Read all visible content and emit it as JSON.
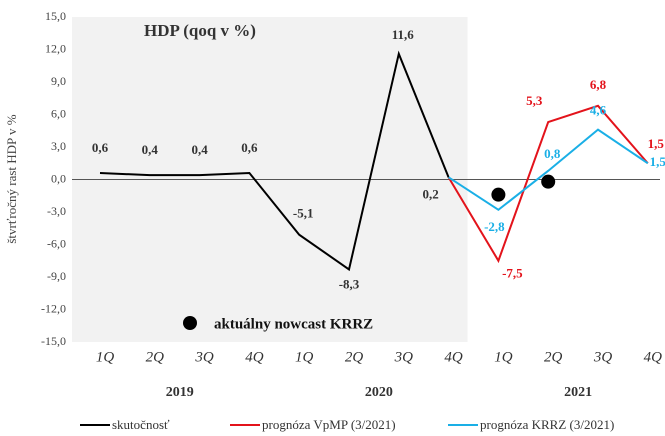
{
  "chart_data": {
    "type": "line",
    "title": "HDP (qoq v %)",
    "ylabel": "štvrťročný rast HDP v %",
    "categories": [
      "1Q",
      "2Q",
      "3Q",
      "4Q",
      "1Q",
      "2Q",
      "3Q",
      "4Q",
      "1Q",
      "2Q",
      "3Q",
      "4Q"
    ],
    "groups": [
      {
        "label": "2019",
        "span": 4
      },
      {
        "label": "2020",
        "span": 4
      },
      {
        "label": "2021",
        "span": 4
      }
    ],
    "ylim": [
      -15,
      15
    ],
    "yticks": [
      {
        "value": -15,
        "label": "-15,0"
      },
      {
        "value": -12,
        "label": "-12,0"
      },
      {
        "value": -9,
        "label": "-9,0"
      },
      {
        "value": -6,
        "label": "-6,0"
      },
      {
        "value": -3,
        "label": "-3,0"
      },
      {
        "value": 0,
        "label": "0,0"
      },
      {
        "value": 3,
        "label": "3,0"
      },
      {
        "value": 6,
        "label": "6,0"
      },
      {
        "value": 9,
        "label": "9,0"
      },
      {
        "value": 12,
        "label": "12,0"
      },
      {
        "value": 15,
        "label": "15,0"
      }
    ],
    "series": [
      {
        "name": "skutočnosť",
        "color": "#000000",
        "values": [
          0.6,
          0.4,
          0.4,
          0.6,
          -5.1,
          -8.3,
          11.6,
          0.2,
          null,
          null,
          null,
          null
        ],
        "value_labels": [
          "0,6",
          "0,4",
          "0,4",
          "0,6",
          "-5,1",
          "-8,3",
          "11,6",
          "0,2",
          null,
          null,
          null,
          null
        ]
      },
      {
        "name": "prognóza VpMP (3/2021)",
        "color": "#e3131b",
        "values": [
          null,
          null,
          null,
          null,
          null,
          null,
          null,
          0.2,
          -7.5,
          5.3,
          6.8,
          1.5
        ],
        "value_labels": [
          null,
          null,
          null,
          null,
          null,
          null,
          null,
          null,
          "-7,5",
          "5,3",
          "6,8",
          "1,5"
        ]
      },
      {
        "name": "prognóza KRRZ (3/2021)",
        "color": "#1aafe6",
        "values": [
          null,
          null,
          null,
          null,
          null,
          null,
          null,
          0.2,
          -2.8,
          0.8,
          4.6,
          1.5
        ],
        "value_labels": [
          null,
          null,
          null,
          null,
          null,
          null,
          null,
          null,
          "-2,8",
          "0,8",
          "4,6",
          "1,5"
        ]
      }
    ],
    "nowcast": {
      "label": "aktuálny nowcast KRRZ",
      "color": "#000000",
      "values": [
        null,
        null,
        null,
        null,
        null,
        null,
        null,
        null,
        -1.4,
        -0.2,
        null,
        null
      ]
    }
  }
}
